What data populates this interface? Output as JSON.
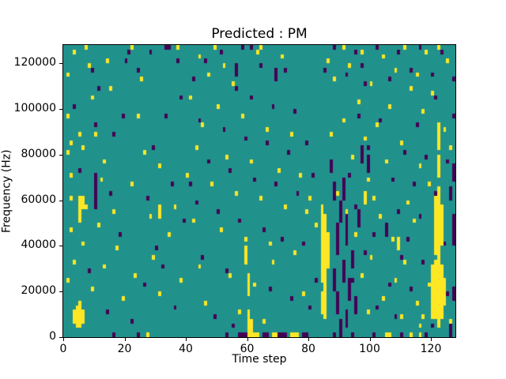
{
  "figure": {
    "background_color": "#ffffff",
    "text_color": "#000000"
  },
  "chart_data": {
    "type": "heatmap",
    "title": "Predicted : PM",
    "xlabel": "Time step",
    "ylabel": "Frequency (Hz)",
    "x_range": [
      0,
      128
    ],
    "y_range_hz": [
      0,
      128000
    ],
    "grid": {
      "time_steps": 128,
      "freq_bins": 64
    },
    "grid_lines": "off",
    "legend": "none",
    "colormap": "viridis",
    "colors": {
      "background": "#21918c",
      "high": "#fde725",
      "low": "#440154",
      "spine": "#000000"
    },
    "xticks": [
      0,
      20,
      40,
      60,
      80,
      100,
      120
    ],
    "xtick_labels": [
      "0",
      "20",
      "40",
      "60",
      "80",
      "100",
      "120"
    ],
    "yticks": [
      0,
      20000,
      40000,
      60000,
      80000,
      100000,
      120000
    ],
    "ytick_labels": [
      "0",
      "20000",
      "40000",
      "60000",
      "80000",
      "100000",
      "120000"
    ],
    "cells": {
      "yellow": [
        [
          7,
          63
        ],
        [
          3,
          62
        ],
        [
          22,
          63
        ],
        [
          37,
          63
        ],
        [
          64,
          63
        ],
        [
          14,
          60
        ],
        [
          8,
          59
        ],
        [
          1,
          57
        ],
        [
          25,
          56
        ],
        [
          15,
          54
        ],
        [
          9,
          52
        ],
        [
          1,
          48
        ],
        [
          24,
          48
        ],
        [
          5,
          44
        ],
        [
          10,
          44
        ],
        [
          2,
          42
        ],
        [
          6,
          41
        ],
        [
          1,
          40
        ],
        [
          26,
          40
        ],
        [
          13,
          38
        ],
        [
          31,
          37
        ],
        [
          2,
          35
        ],
        [
          12,
          34
        ],
        [
          22,
          33
        ],
        [
          36,
          28
        ],
        [
          2,
          30
        ],
        [
          7,
          28
        ],
        [
          16,
          27
        ],
        [
          28,
          26
        ],
        [
          11,
          24
        ],
        [
          2,
          23
        ],
        [
          34,
          22
        ],
        [
          6,
          20
        ],
        [
          17,
          19
        ],
        [
          29,
          17
        ],
        [
          3,
          16
        ],
        [
          13,
          15
        ],
        [
          23,
          13
        ],
        [
          38,
          12
        ],
        [
          1,
          12
        ],
        [
          9,
          10
        ],
        [
          31,
          9
        ],
        [
          19,
          8
        ],
        [
          40,
          35
        ],
        [
          49,
          63
        ],
        [
          44,
          61
        ],
        [
          63,
          62
        ],
        [
          52,
          59
        ],
        [
          47,
          57
        ],
        [
          71,
          61
        ],
        [
          55,
          55
        ],
        [
          41,
          52
        ],
        [
          50,
          50
        ],
        [
          58,
          48
        ],
        [
          45,
          46
        ],
        [
          66,
          45
        ],
        [
          74,
          44
        ],
        [
          43,
          41
        ],
        [
          53,
          39
        ],
        [
          61,
          38
        ],
        [
          70,
          36
        ],
        [
          77,
          35
        ],
        [
          48,
          33
        ],
        [
          56,
          31
        ],
        [
          64,
          30
        ],
        [
          72,
          28
        ],
        [
          79,
          27
        ],
        [
          42,
          25
        ],
        [
          51,
          23
        ],
        [
          59,
          21
        ],
        [
          67,
          20
        ],
        [
          75,
          18
        ],
        [
          68,
          16
        ],
        [
          44,
          15
        ],
        [
          54,
          13
        ],
        [
          62,
          11
        ],
        [
          78,
          9
        ],
        [
          46,
          7
        ],
        [
          57,
          5
        ],
        [
          65,
          3
        ],
        [
          80,
          30
        ],
        [
          82,
          24
        ],
        [
          91,
          63
        ],
        [
          97,
          62
        ],
        [
          104,
          61
        ],
        [
          111,
          63
        ],
        [
          118,
          62
        ],
        [
          122,
          63
        ],
        [
          86,
          60
        ],
        [
          93,
          59
        ],
        [
          108,
          58
        ],
        [
          115,
          57
        ],
        [
          125,
          60
        ],
        [
          88,
          56
        ],
        [
          100,
          55
        ],
        [
          113,
          54
        ],
        [
          120,
          53
        ],
        [
          96,
          51
        ],
        [
          106,
          50
        ],
        [
          117,
          49
        ],
        [
          91,
          47
        ],
        [
          102,
          46
        ],
        [
          124,
          45
        ],
        [
          87,
          44
        ],
        [
          98,
          43
        ],
        [
          110,
          42
        ],
        [
          126,
          41
        ],
        [
          94,
          39
        ],
        [
          105,
          38
        ],
        [
          116,
          37
        ],
        [
          99,
          34
        ],
        [
          119,
          33
        ],
        [
          89,
          31
        ],
        [
          101,
          30
        ],
        [
          112,
          29
        ],
        [
          92,
          27
        ],
        [
          103,
          26
        ],
        [
          114,
          25
        ],
        [
          95,
          22
        ],
        [
          107,
          21
        ],
        [
          100,
          17
        ],
        [
          111,
          16
        ],
        [
          97,
          13
        ],
        [
          108,
          12
        ],
        [
          119,
          11
        ],
        [
          93,
          9
        ],
        [
          104,
          8
        ],
        [
          115,
          7
        ],
        [
          99,
          5
        ],
        [
          110,
          4
        ],
        [
          126,
          3
        ],
        [
          116,
          2
        ],
        [
          117,
          4
        ],
        [
          27,
          0
        ],
        [
          60,
          0
        ],
        [
          61,
          0
        ],
        [
          62,
          0
        ],
        [
          63,
          0
        ],
        [
          68,
          0
        ],
        [
          69,
          0
        ],
        [
          74,
          0
        ],
        [
          75,
          0
        ],
        [
          76,
          0
        ],
        [
          90,
          0
        ],
        [
          105,
          0
        ],
        [
          106,
          0
        ],
        [
          113,
          0
        ],
        [
          116,
          0
        ]
      ],
      "purple": [
        [
          33,
          63
        ],
        [
          34,
          63
        ],
        [
          61,
          63
        ],
        [
          28,
          62
        ],
        [
          21,
          62
        ],
        [
          20,
          60
        ],
        [
          37,
          60
        ],
        [
          9,
          58
        ],
        [
          24,
          58
        ],
        [
          11,
          54
        ],
        [
          38,
          52
        ],
        [
          3,
          50
        ],
        [
          19,
          48
        ],
        [
          33,
          48
        ],
        [
          10,
          46
        ],
        [
          16,
          44
        ],
        [
          29,
          41
        ],
        [
          5,
          36
        ],
        [
          35,
          33
        ],
        [
          15,
          31
        ],
        [
          27,
          30
        ],
        [
          39,
          25
        ],
        [
          18,
          22
        ],
        [
          30,
          19
        ],
        [
          32,
          15
        ],
        [
          8,
          14
        ],
        [
          26,
          11
        ],
        [
          36,
          6
        ],
        [
          14,
          5
        ],
        [
          22,
          3
        ],
        [
          58,
          63
        ],
        [
          51,
          62
        ],
        [
          46,
          60
        ],
        [
          64,
          59
        ],
        [
          72,
          58
        ],
        [
          42,
          56
        ],
        [
          56,
          54
        ],
        [
          61,
          52
        ],
        [
          68,
          50
        ],
        [
          75,
          49
        ],
        [
          44,
          47
        ],
        [
          52,
          45
        ],
        [
          59,
          43
        ],
        [
          66,
          42
        ],
        [
          73,
          40
        ],
        [
          47,
          38
        ],
        [
          54,
          36
        ],
        [
          62,
          34
        ],
        [
          69,
          33
        ],
        [
          76,
          31
        ],
        [
          43,
          29
        ],
        [
          50,
          27
        ],
        [
          57,
          25
        ],
        [
          65,
          23
        ],
        [
          71,
          21
        ],
        [
          78,
          20
        ],
        [
          45,
          17
        ],
        [
          53,
          14
        ],
        [
          60,
          12
        ],
        [
          67,
          10
        ],
        [
          74,
          8
        ],
        [
          49,
          4
        ],
        [
          55,
          2
        ],
        [
          41,
          33
        ],
        [
          79,
          42
        ],
        [
          81,
          35
        ],
        [
          82,
          12
        ],
        [
          80,
          6
        ],
        [
          88,
          63
        ],
        [
          95,
          62
        ],
        [
          102,
          63
        ],
        [
          109,
          62
        ],
        [
          116,
          63
        ],
        [
          123,
          62
        ],
        [
          97,
          59
        ],
        [
          85,
          58
        ],
        [
          92,
          57
        ],
        [
          113,
          58
        ],
        [
          120,
          57
        ],
        [
          106,
          56
        ],
        [
          127,
          56
        ],
        [
          98,
          55
        ],
        [
          121,
          52
        ],
        [
          127,
          48
        ],
        [
          96,
          48
        ],
        [
          103,
          47
        ],
        [
          115,
          46
        ],
        [
          122,
          44
        ],
        [
          99,
          41
        ],
        [
          111,
          40
        ],
        [
          118,
          39
        ],
        [
          125,
          38
        ],
        [
          93,
          35
        ],
        [
          107,
          34
        ],
        [
          114,
          33
        ],
        [
          121,
          31
        ],
        [
          95,
          28
        ],
        [
          109,
          27
        ],
        [
          116,
          26
        ],
        [
          123,
          25
        ],
        [
          101,
          22
        ],
        [
          112,
          21
        ],
        [
          124,
          20
        ],
        [
          98,
          18
        ],
        [
          110,
          17
        ],
        [
          117,
          16
        ],
        [
          94,
          12
        ],
        [
          106,
          11
        ],
        [
          113,
          10
        ],
        [
          125,
          9
        ],
        [
          102,
          6
        ],
        [
          108,
          4
        ],
        [
          120,
          2
        ],
        [
          16,
          0
        ],
        [
          24,
          0
        ],
        [
          53,
          0
        ],
        [
          57,
          0
        ],
        [
          58,
          0
        ],
        [
          59,
          0
        ],
        [
          65,
          0
        ],
        [
          66,
          0
        ],
        [
          70,
          0
        ],
        [
          71,
          0
        ],
        [
          72,
          0
        ],
        [
          78,
          0
        ],
        [
          79,
          0
        ],
        [
          88,
          0
        ],
        [
          94,
          0
        ],
        [
          101,
          0
        ],
        [
          110,
          0
        ],
        [
          118,
          0
        ],
        [
          126,
          0
        ]
      ]
    },
    "streaks": {
      "yellow": [
        [
          3,
          3,
          5
        ],
        [
          4,
          2,
          6
        ],
        [
          5,
          2,
          7
        ],
        [
          6,
          3,
          5
        ],
        [
          5,
          25,
          30
        ],
        [
          6,
          28,
          30
        ],
        [
          31,
          26,
          28
        ],
        [
          59,
          16,
          19
        ],
        [
          60,
          1,
          5
        ],
        [
          60,
          9,
          13
        ],
        [
          61,
          1,
          3
        ],
        [
          84,
          5,
          9
        ],
        [
          84,
          12,
          28
        ],
        [
          85,
          4,
          26
        ],
        [
          86,
          15,
          22
        ],
        [
          98,
          29,
          31
        ],
        [
          109,
          19,
          21
        ],
        [
          120,
          4,
          15
        ],
        [
          121,
          4,
          16
        ],
        [
          121,
          18,
          30
        ],
        [
          122,
          2,
          32
        ],
        [
          122,
          35,
          39
        ],
        [
          122,
          41,
          46
        ],
        [
          123,
          4,
          15
        ],
        [
          123,
          20,
          28
        ],
        [
          124,
          7,
          12
        ]
      ],
      "purple": [
        [
          10,
          28,
          35
        ],
        [
          56,
          57,
          59
        ],
        [
          69,
          56,
          58
        ],
        [
          87,
          36,
          38
        ],
        [
          88,
          10,
          14
        ],
        [
          88,
          30,
          33
        ],
        [
          89,
          5,
          9
        ],
        [
          89,
          18,
          24
        ],
        [
          90,
          0,
          3
        ],
        [
          90,
          25,
          29
        ],
        [
          91,
          12,
          16
        ],
        [
          91,
          30,
          34
        ],
        [
          92,
          2,
          5
        ],
        [
          92,
          20,
          26
        ],
        [
          93,
          8,
          12
        ],
        [
          94,
          15,
          18
        ],
        [
          95,
          5,
          8
        ],
        [
          96,
          24,
          27
        ],
        [
          97,
          38,
          41
        ],
        [
          99,
          36,
          39
        ],
        [
          105,
          22,
          24
        ],
        [
          126,
          0,
          2
        ],
        [
          126,
          30,
          32
        ],
        [
          127,
          8,
          10
        ],
        [
          127,
          20,
          26
        ],
        [
          127,
          34,
          37
        ]
      ]
    }
  }
}
